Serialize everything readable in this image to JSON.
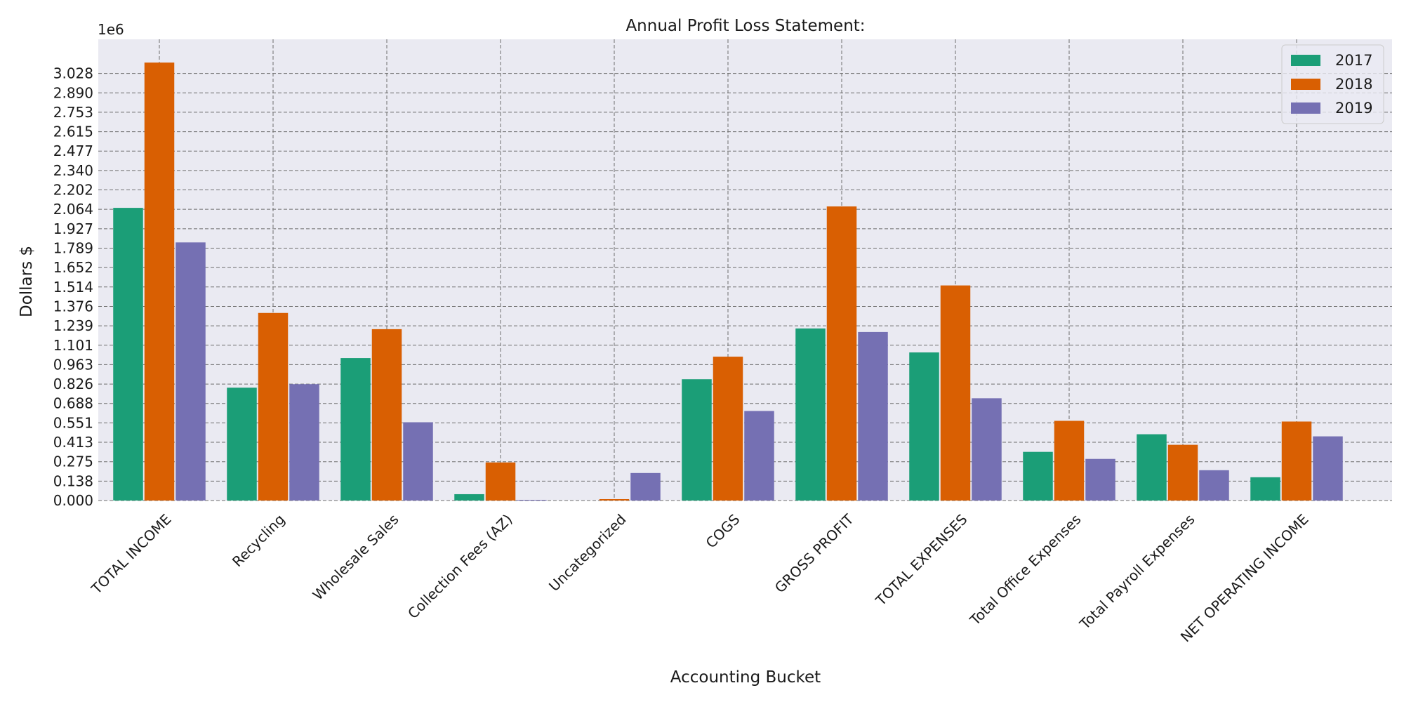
{
  "chart_data": {
    "type": "bar",
    "title": "Annual Profit Loss Statement:",
    "xlabel": "Accounting Bucket",
    "ylabel": "Dollars $",
    "y_offset_text": "1e6",
    "categories": [
      "TOTAL INCOME",
      "Recycling",
      "Wholesale Sales",
      "Collection Fees (AZ)",
      "Uncategorized",
      "COGS",
      "GROSS PROFIT",
      "TOTAL EXPENSES",
      "Total Office Expenses",
      "Total Payroll Expenses",
      "NET OPERATING INCOME"
    ],
    "series": [
      {
        "name": "2017",
        "color": "#1b9e77",
        "values": [
          2075000,
          800000,
          1010000,
          45000,
          0,
          860000,
          1220000,
          1050000,
          345000,
          470000,
          165000
        ]
      },
      {
        "name": "2018",
        "color": "#d95f02",
        "values": [
          3105000,
          1330000,
          1215000,
          270000,
          10000,
          1020000,
          2085000,
          1525000,
          565000,
          395000,
          560000
        ]
      },
      {
        "name": "2019",
        "color": "#7570b3",
        "values": [
          1830000,
          825000,
          555000,
          5000,
          195000,
          635000,
          1195000,
          725000,
          295000,
          215000,
          455000
        ]
      }
    ],
    "yticks": [
      "0.000",
      "0.138",
      "0.275",
      "0.413",
      "0.551",
      "0.688",
      "0.826",
      "0.963",
      "1.101",
      "1.239",
      "1.376",
      "1.514",
      "1.652",
      "1.789",
      "1.927",
      "2.064",
      "2.202",
      "2.340",
      "2.477",
      "2.615",
      "2.753",
      "2.890",
      "3.028"
    ],
    "ytick_step": 137640,
    "ylim": [
      0,
      3270000
    ],
    "grid": true,
    "legend_position": "top-right"
  }
}
